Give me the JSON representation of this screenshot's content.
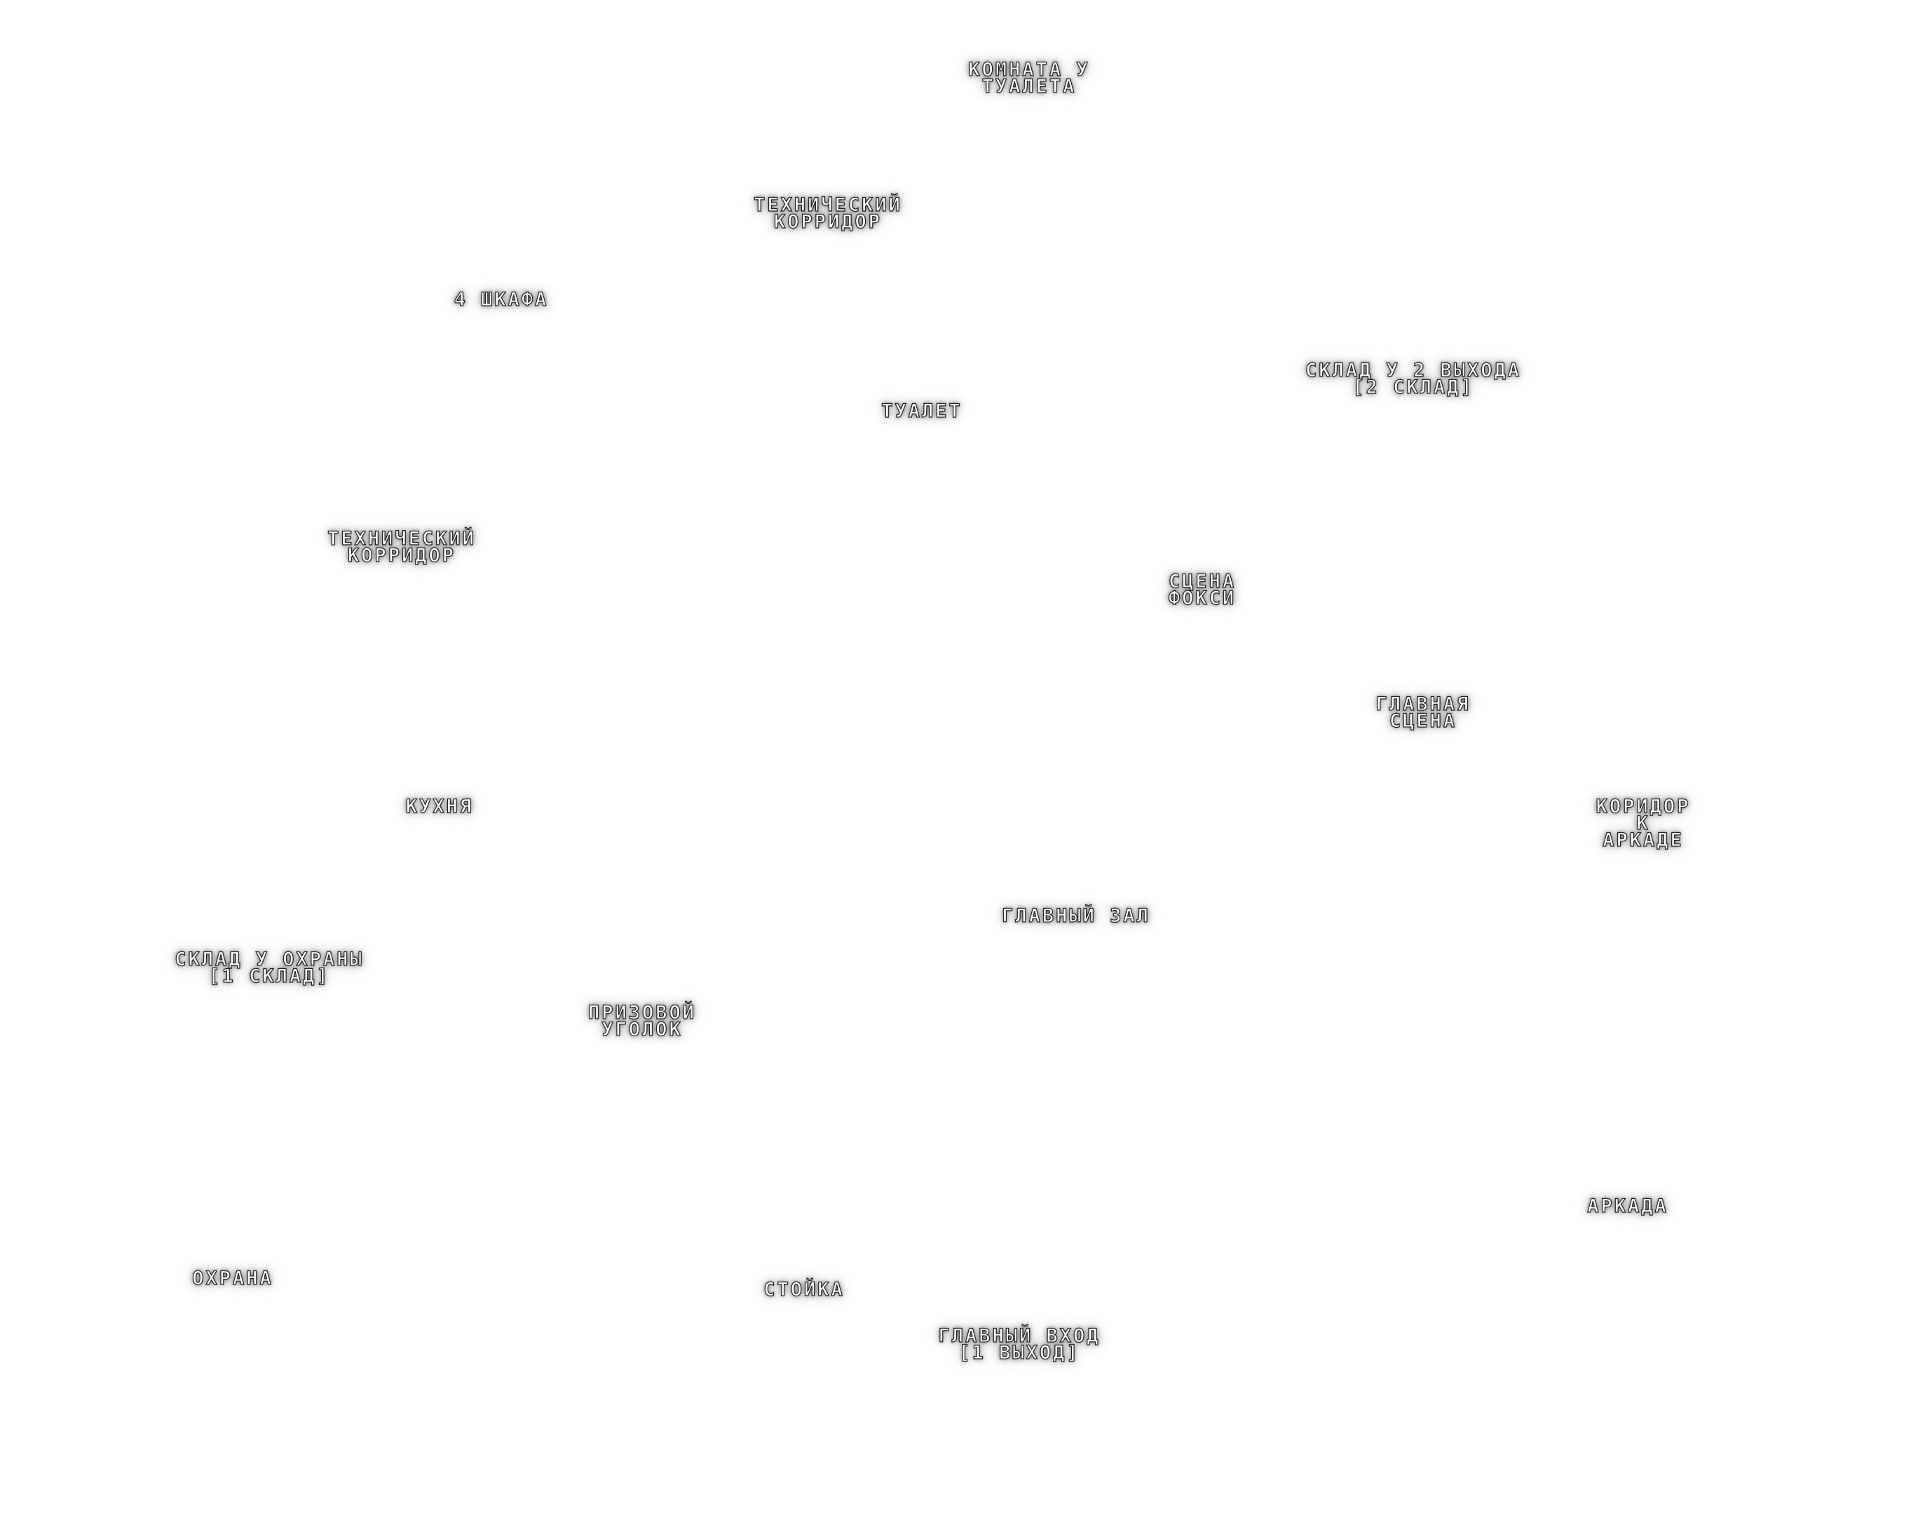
{
  "map": {
    "rooms": [
      {
        "id": "room-near-toilet",
        "lines": [
          "КОМНАТА У",
          "ТУАЛЕТА"
        ]
      },
      {
        "id": "tech-corridor-top",
        "lines": [
          "ТЕХНИЧЕСКИЙ",
          "КОРРИДОР"
        ]
      },
      {
        "id": "four-cabinets",
        "lines": [
          "4 ШКАФА"
        ]
      },
      {
        "id": "storage-near-exit-2",
        "lines": [
          "СКЛАД У 2 ВЫХОДА",
          "[2 СКЛАД]"
        ]
      },
      {
        "id": "toilet",
        "lines": [
          "ТУАЛЕТ"
        ]
      },
      {
        "id": "tech-corridor-left",
        "lines": [
          "ТЕХНИЧЕСКИЙ",
          "КОРРИДОР"
        ]
      },
      {
        "id": "foxy-stage",
        "lines": [
          "СЦЕНА",
          "ФОКСИ"
        ]
      },
      {
        "id": "main-stage",
        "lines": [
          "ГЛАВНАЯ",
          "СЦЕНА"
        ]
      },
      {
        "id": "kitchen",
        "lines": [
          "КУХНЯ"
        ]
      },
      {
        "id": "arcade-corridor",
        "lines": [
          "КОРИДОР",
          "К",
          "АРКАДЕ"
        ]
      },
      {
        "id": "main-hall",
        "lines": [
          "ГЛАВНЫЙ ЗАЛ"
        ]
      },
      {
        "id": "storage-near-security",
        "lines": [
          "СКЛАД У ОХРАНЫ",
          "[1 СКЛАД]"
        ]
      },
      {
        "id": "prize-corner",
        "lines": [
          "ПРИЗОВОЙ",
          "УГОЛОК"
        ]
      },
      {
        "id": "arcade",
        "lines": [
          "АРКАДА"
        ]
      },
      {
        "id": "security",
        "lines": [
          "ОХРАНА"
        ]
      },
      {
        "id": "counter",
        "lines": [
          "СТОЙКА"
        ]
      },
      {
        "id": "main-entrance",
        "lines": [
          "ГЛАВНЫЙ ВХОД",
          "[1 ВЫХОД]"
        ]
      }
    ]
  }
}
